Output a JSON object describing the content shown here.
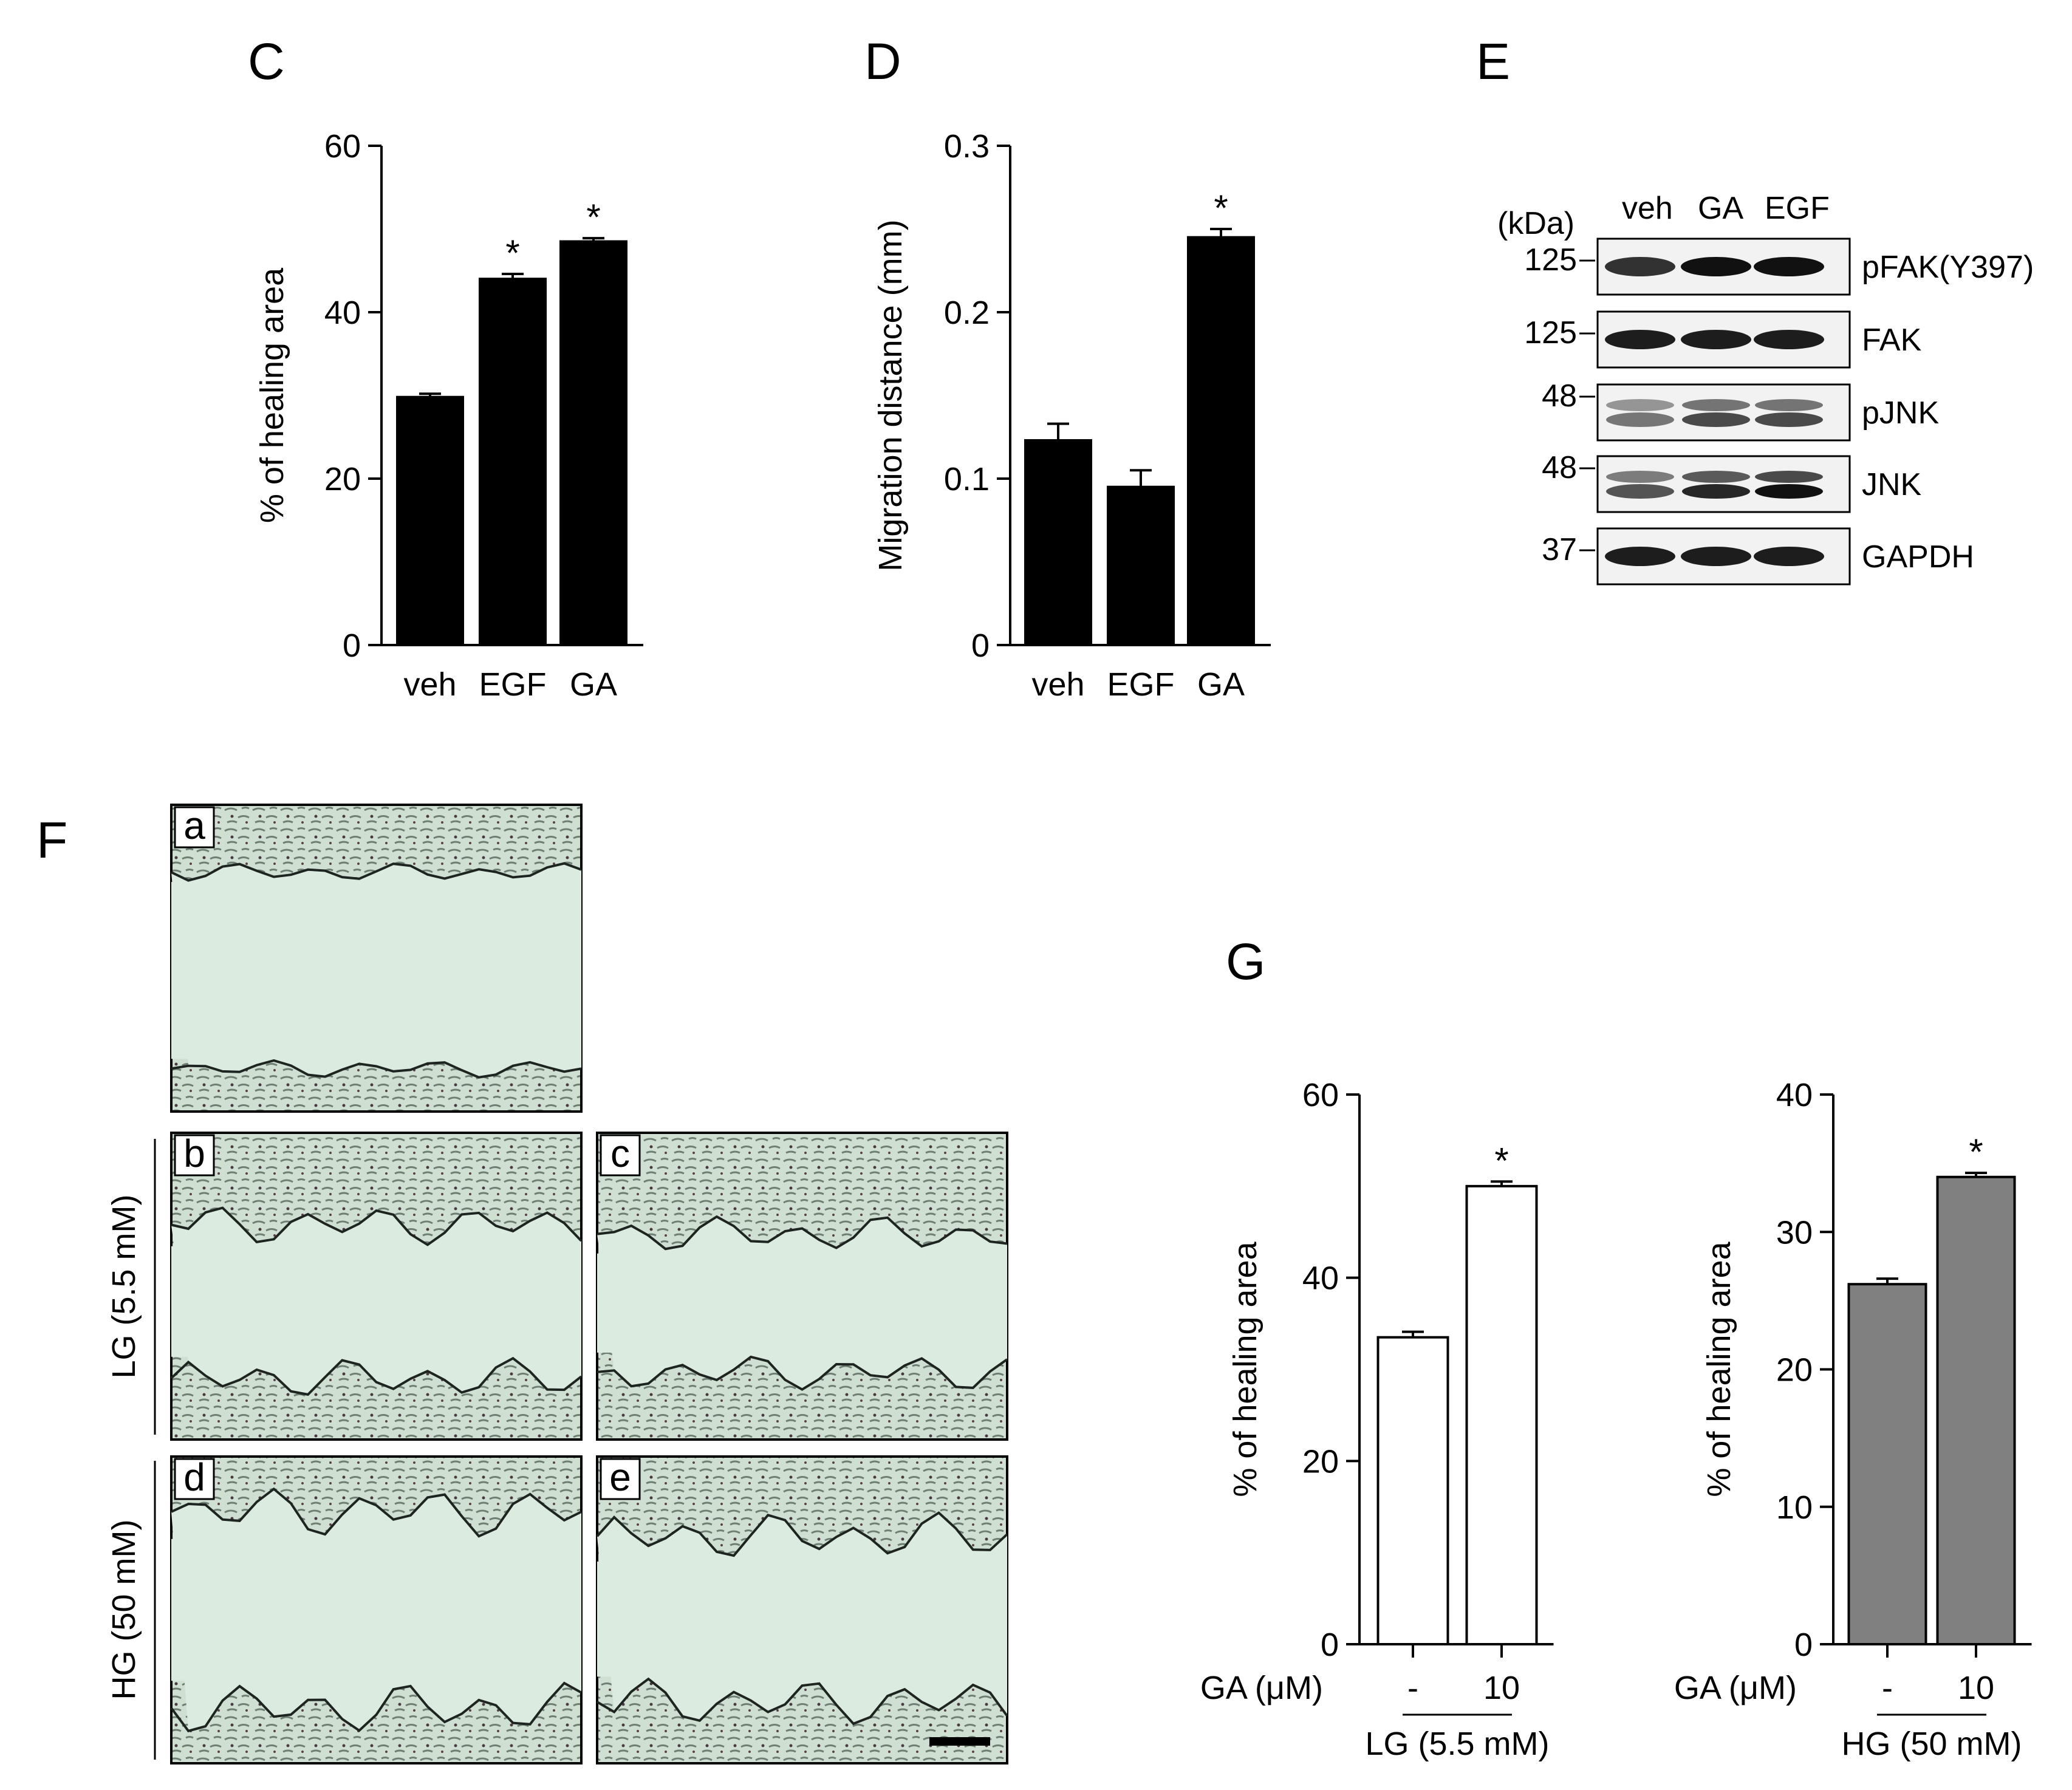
{
  "panels": {
    "C": "C",
    "D": "D",
    "E": "E",
    "F": "F",
    "G": "G"
  },
  "chart_data": [
    {
      "panel": "C",
      "type": "bar",
      "categories": [
        "veh",
        "EGF",
        "GA"
      ],
      "values": [
        29.8,
        44.0,
        48.5
      ],
      "errors": [
        0.4,
        0.6,
        0.4
      ],
      "significance": [
        "",
        "*",
        "*"
      ],
      "ylabel": "% of healing area",
      "ylim": [
        0,
        60
      ],
      "yticks": [
        "0",
        "20",
        "40",
        "60"
      ],
      "bar_color": "#000000",
      "grid": false
    },
    {
      "panel": "D",
      "type": "bar",
      "categories": [
        "veh",
        "EGF",
        "GA"
      ],
      "values": [
        0.123,
        0.095,
        0.245
      ],
      "errors": [
        0.01,
        0.01,
        0.005
      ],
      "significance": [
        "",
        "",
        "*"
      ],
      "ylabel": "Migration distance (mm)",
      "ylim": [
        0,
        0.3
      ],
      "yticks": [
        "0",
        "0.1",
        "0.2",
        "0.3"
      ],
      "bar_color": "#000000",
      "grid": false
    },
    {
      "panel": "G-left",
      "type": "bar",
      "categories": [
        "-",
        "10"
      ],
      "values": [
        33.5,
        50.0
      ],
      "errors": [
        0.6,
        0.5
      ],
      "significance": [
        "",
        "*"
      ],
      "ylabel": "% of healing area",
      "xlabel_prefix": "GA (μM)",
      "group_label": "LG (5.5 mM)",
      "ylim": [
        0,
        60
      ],
      "yticks": [
        "0",
        "20",
        "40",
        "60"
      ],
      "bar_color": "#ffffff",
      "grid": false
    },
    {
      "panel": "G-right",
      "type": "bar",
      "categories": [
        "-",
        "10"
      ],
      "values": [
        26.2,
        34.0
      ],
      "errors": [
        0.4,
        0.3
      ],
      "significance": [
        "",
        "*"
      ],
      "ylabel": "% of healing area",
      "xlabel_prefix": "GA (μM)",
      "group_label": "HG (50 mM)",
      "ylim": [
        0,
        40
      ],
      "yticks": [
        "0",
        "10",
        "20",
        "30",
        "40"
      ],
      "bar_color": "#808080",
      "grid": false
    }
  ],
  "western_blot": {
    "unit_label": "(kDa)",
    "lanes": [
      "veh",
      "GA",
      "EGF"
    ],
    "rows": [
      {
        "marker": "125",
        "protein": "pFAK(Y397)"
      },
      {
        "marker": "125",
        "protein": "FAK"
      },
      {
        "marker": "48",
        "protein": "pJNK"
      },
      {
        "marker": "48",
        "protein": "JNK"
      },
      {
        "marker": "37",
        "protein": "GAPDH"
      }
    ]
  },
  "micrographs": {
    "letters": [
      "a",
      "b",
      "c",
      "d",
      "e"
    ],
    "row_labels": [
      "LG (5.5 mM)",
      "HG (50 mM)"
    ]
  },
  "colors": {
    "micrograph_bg": "#dcebe0",
    "cell_texture": "#7f8f84",
    "wound_edge": "#1e2420",
    "blot_band": "#111111",
    "blot_bg": "#f2f2f2"
  }
}
